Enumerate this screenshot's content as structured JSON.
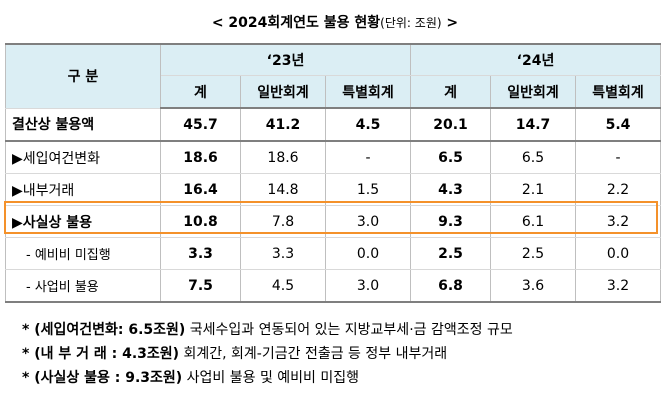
{
  "title": {
    "main": "< 2024회계연도 불용 현황",
    "unit": "(단위: 조원)",
    "close": " >"
  },
  "table": {
    "header": {
      "category": "구  분",
      "year1": "‘23년",
      "year2": "‘24년",
      "cols": [
        "계",
        "일반회계",
        "특별회계",
        "계",
        "일반회계",
        "특별회계"
      ]
    },
    "rows": [
      {
        "label": "결산상 불용액",
        "values": [
          "45.7",
          "41.2",
          "4.5",
          "20.1",
          "14.7",
          "5.4"
        ]
      },
      {
        "label": "▶세입여건변화",
        "values": [
          "18.6",
          "18.6",
          "-",
          "6.5",
          "6.5",
          "-"
        ]
      },
      {
        "label": "▶내부거래",
        "values": [
          "16.4",
          "14.8",
          "1.5",
          "4.3",
          "2.1",
          "2.2"
        ]
      },
      {
        "label": "▶사실상 불용",
        "values": [
          "10.8",
          "7.8",
          "3.0",
          "9.3",
          "6.1",
          "3.2"
        ]
      },
      {
        "label": "- 예비비 미집행",
        "values": [
          "3.3",
          "3.3",
          "0.0",
          "2.5",
          "2.5",
          "0.0"
        ]
      },
      {
        "label": "- 사업비 불용",
        "values": [
          "7.5",
          "4.5",
          "3.0",
          "6.8",
          "3.6",
          "3.2"
        ]
      }
    ]
  },
  "notes": [
    {
      "key": "* (세입여건변화: 6.5조원)",
      "text": " 국세수입과 연동되어 있는 지방교부세·금 감액조정 규모"
    },
    {
      "key": "* (내 부 거 래 : 4.3조원)",
      "text": " 회계간, 회계-기금간 전출금 등 정부 내부거래"
    },
    {
      "key": "* (사실상 불용 : 9.3조원)",
      "text": " 사업비 불용 및 예비비 미집행"
    }
  ]
}
